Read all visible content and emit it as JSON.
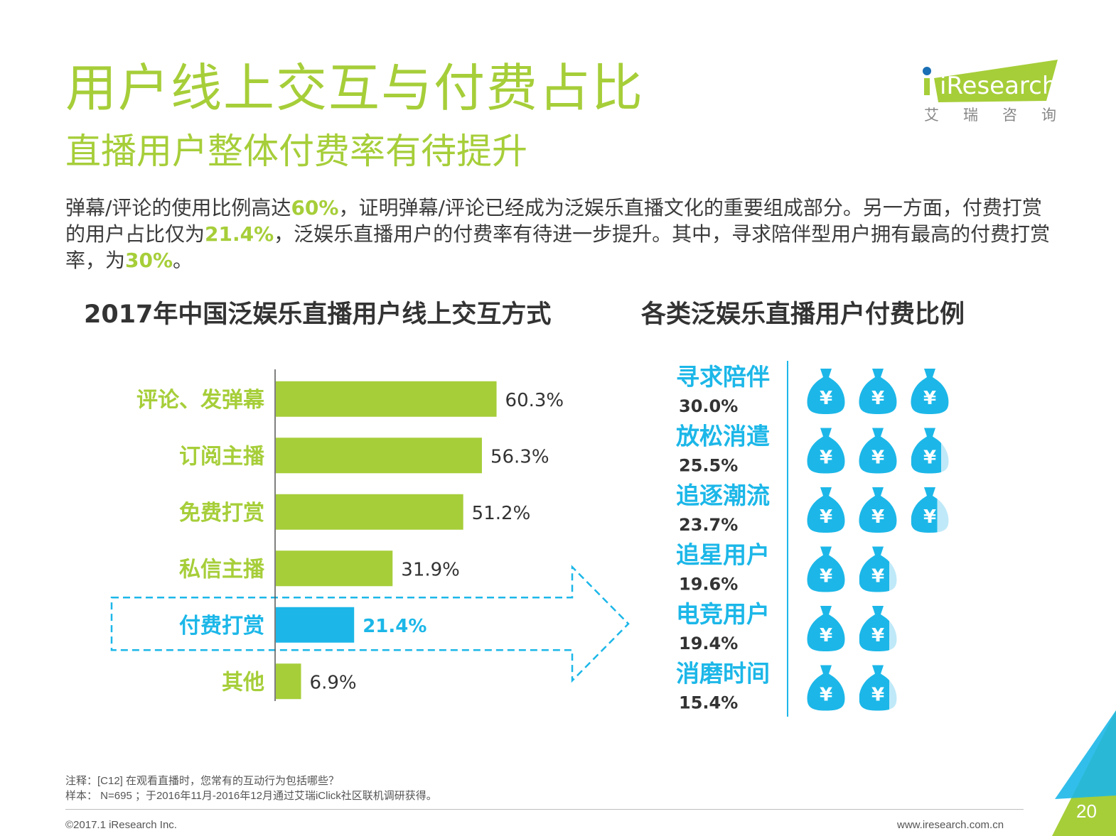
{
  "slide": {
    "title": "用户线上交互与付费占比",
    "subtitle": "直播用户整体付费率有待提升",
    "body": {
      "p1": "弹幕/评论的使用比例高达",
      "h1": "60%",
      "p2": "，证明弹幕/评论已经成为泛娱乐直播文化的重要组成部分。另一方面，付费打赏的用户占比仅为",
      "h2": "21.4%",
      "p3": "，泛娱乐直播用户的付费率有待进一步提升。其中，寻求陪伴型用户拥有最高的付费打赏率，为",
      "h3": "30%",
      "p4": "。"
    },
    "page_number": "20"
  },
  "logo": {
    "name": "iResearch",
    "subtitle": "艾瑞咨询"
  },
  "footer": {
    "note": "注释：[C12] 在观看直播时，您常有的互动行为包括哪些？",
    "sample": "样本： N=695 ；于2016年11月-2016年12月通过艾瑞iClick社区联机调研获得。",
    "copyright": "©2017.1 iResearch Inc.",
    "website": "www.iresearch.com.cn"
  },
  "colors": {
    "green": "#a6ce39",
    "bar_green": "#a6ce39",
    "blue": "#1cb7e8",
    "blue_light": "#bfe9f8",
    "text": "#333333"
  },
  "icon_names": {
    "money_bag": "money-bag-icon"
  },
  "chart_data": [
    {
      "type": "bar",
      "orientation": "horizontal",
      "title": "2017年中国泛娱乐直播用户线上交互方式",
      "categories": [
        "评论、发弹幕",
        "订阅主播",
        "免费打赏",
        "私信主播",
        "付费打赏",
        "其他"
      ],
      "values": [
        60.3,
        56.3,
        51.2,
        31.9,
        21.4,
        6.9
      ],
      "labels": [
        "60.3%",
        "56.3%",
        "51.2%",
        "31.9%",
        "21.4%",
        "6.9%"
      ],
      "highlight_index": 4,
      "unit": "%",
      "xlim": [
        0,
        100
      ]
    },
    {
      "type": "pictogram",
      "title": "各类泛娱乐直播用户付费比例",
      "categories": [
        "寻求陪伴",
        "放松消遣",
        "追逐潮流",
        "追星用户",
        "电竞用户",
        "消磨时间"
      ],
      "values": [
        30.0,
        25.5,
        23.7,
        19.6,
        19.4,
        15.4
      ],
      "labels": [
        "30.0%",
        "25.5%",
        "23.7%",
        "19.6%",
        "19.4%",
        "15.4%"
      ],
      "icon_unit_value": 10,
      "unit": "%"
    }
  ]
}
